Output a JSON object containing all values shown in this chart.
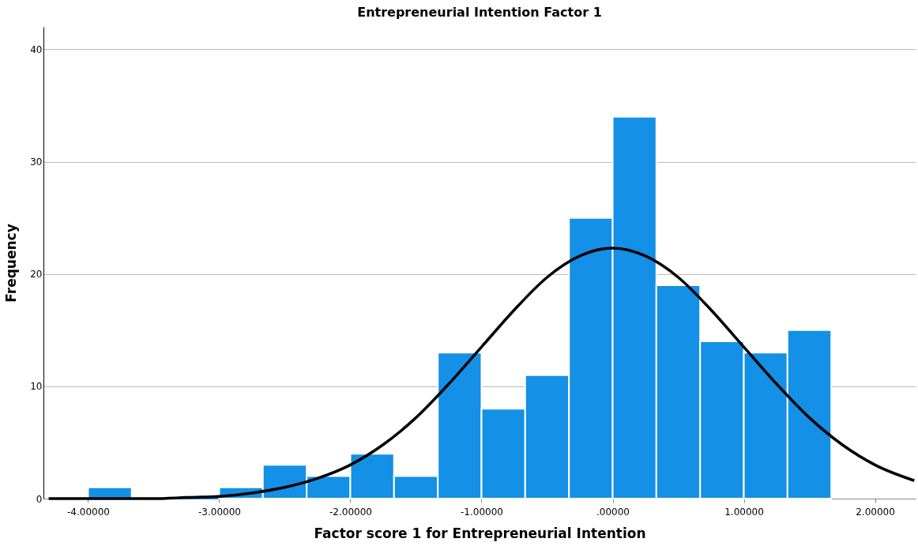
{
  "chart_data": {
    "type": "histogram",
    "title": "Entrepreneurial Intention Factor 1",
    "xlabel": "Factor score 1 for Entrepreneurial Intention",
    "ylabel": "Frequency",
    "bins": [
      -4,
      -3.667,
      -3.333,
      -3.0,
      -2.667,
      -2.333,
      -2.0,
      -1.667,
      -1.333,
      -1.0,
      -0.667,
      -0.333,
      0,
      0.333,
      0.667,
      1.0,
      1.333,
      1.667
    ],
    "values": [
      1,
      0,
      0,
      1,
      3,
      2,
      4,
      2,
      13,
      8,
      11,
      25,
      34,
      19,
      14,
      13,
      15
    ],
    "color": "#1490e6",
    "series": [
      {
        "type": "line",
        "color": "#000000",
        "x": [
          -4.3,
          -4,
          -3.5,
          -3.25,
          -3,
          -2.75,
          -2.5,
          -2.25,
          -2,
          -1.75,
          -1.5,
          -1.25,
          -1,
          -0.75,
          -0.5,
          -0.25,
          0,
          0.25,
          0.5,
          0.75,
          1,
          1.25,
          1.5,
          1.75,
          2,
          2.3
        ],
        "values": [
          0.0,
          0.0,
          0.0,
          0.1,
          0.2,
          0.5,
          1.0,
          1.8,
          3.0,
          4.8,
          7.2,
          10.2,
          13.5,
          16.8,
          19.7,
          21.6,
          22.3,
          21.6,
          19.7,
          16.8,
          13.5,
          10.2,
          7.2,
          4.8,
          3.0,
          1.6
        ]
      }
    ],
    "xlim": [
      -4.34,
      2.31
    ],
    "ylim": [
      0,
      42
    ],
    "xticks": [
      {
        "value": -4,
        "label": "-4.00000"
      },
      {
        "value": -3,
        "label": "-3.00000"
      },
      {
        "value": -2,
        "label": "-2.00000"
      },
      {
        "value": -1,
        "label": "-1.00000"
      },
      {
        "value": 0,
        "label": ".00000"
      },
      {
        "value": 1,
        "label": "1.00000"
      },
      {
        "value": 2,
        "label": "2.00000"
      }
    ],
    "yticks": [
      0,
      10,
      20,
      30,
      40
    ],
    "grid": "y"
  }
}
